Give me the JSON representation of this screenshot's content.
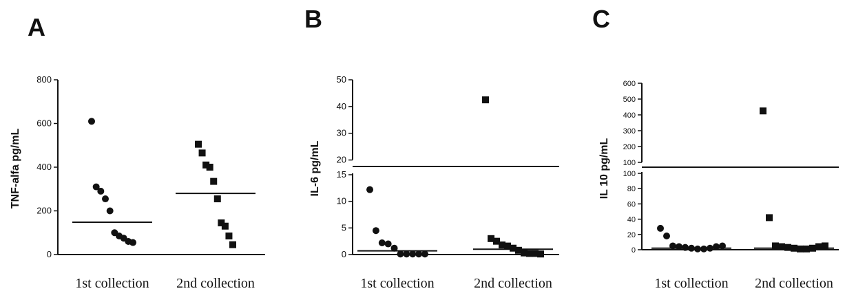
{
  "chart_data": [
    {
      "type": "scatter",
      "panel_label": "A",
      "ylabel": "TNF-alfa pg/mL",
      "categories": [
        "1st collection",
        "2nd collection"
      ],
      "ylim": [
        0,
        800
      ],
      "yticks": [
        0,
        200,
        400,
        600,
        800
      ],
      "series": [
        {
          "category": "1st collection",
          "marker": "circle",
          "values": [
            610,
            310,
            290,
            255,
            200,
            100,
            85,
            75,
            60,
            55
          ],
          "mean": 148
        },
        {
          "category": "2nd collection",
          "marker": "square",
          "values": [
            505,
            465,
            410,
            400,
            335,
            255,
            145,
            130,
            85,
            45
          ],
          "mean": 280
        }
      ]
    },
    {
      "type": "scatter",
      "panel_label": "B",
      "ylabel": "IL-6 pg/mL",
      "categories": [
        "1st collection",
        "2nd collection"
      ],
      "axis_break": true,
      "ylim_lower": [
        0,
        15
      ],
      "ylim_upper": [
        15,
        50
      ],
      "yticks_lower": [
        0,
        5,
        10,
        15
      ],
      "yticks_upper": [
        20,
        30,
        40,
        50
      ],
      "series": [
        {
          "category": "1st collection",
          "marker": "circle",
          "values": [
            12.2,
            4.5,
            2.2,
            2.0,
            1.2,
            0.1,
            0.1,
            0.1,
            0.1,
            0.1
          ],
          "mean": 0.7
        },
        {
          "category": "2nd collection",
          "marker": "square",
          "values": [
            42.5,
            3.0,
            2.5,
            1.8,
            1.6,
            1.2,
            0.8,
            0.3,
            0.2,
            0.2,
            0.1
          ],
          "mean": 1.0
        }
      ]
    },
    {
      "type": "scatter",
      "panel_label": "C",
      "ylabel": "IL 10 pg/mL",
      "categories": [
        "1st collection",
        "2nd collection"
      ],
      "axis_break": true,
      "ylim_lower": [
        0,
        100
      ],
      "ylim_upper": [
        100,
        600
      ],
      "yticks_lower": [
        0,
        20,
        40,
        60,
        80,
        100
      ],
      "yticks_upper": [
        100,
        200,
        300,
        400,
        500,
        600
      ],
      "series": [
        {
          "category": "1st collection",
          "marker": "circle",
          "values": [
            28,
            18,
            5,
            4,
            3,
            2,
            1,
            1,
            2,
            4,
            5
          ],
          "mean": 2
        },
        {
          "category": "2nd collection",
          "marker": "square",
          "values": [
            425,
            42,
            5,
            4,
            3,
            2,
            1,
            1,
            2,
            4,
            5
          ],
          "mean": 2
        }
      ]
    }
  ]
}
